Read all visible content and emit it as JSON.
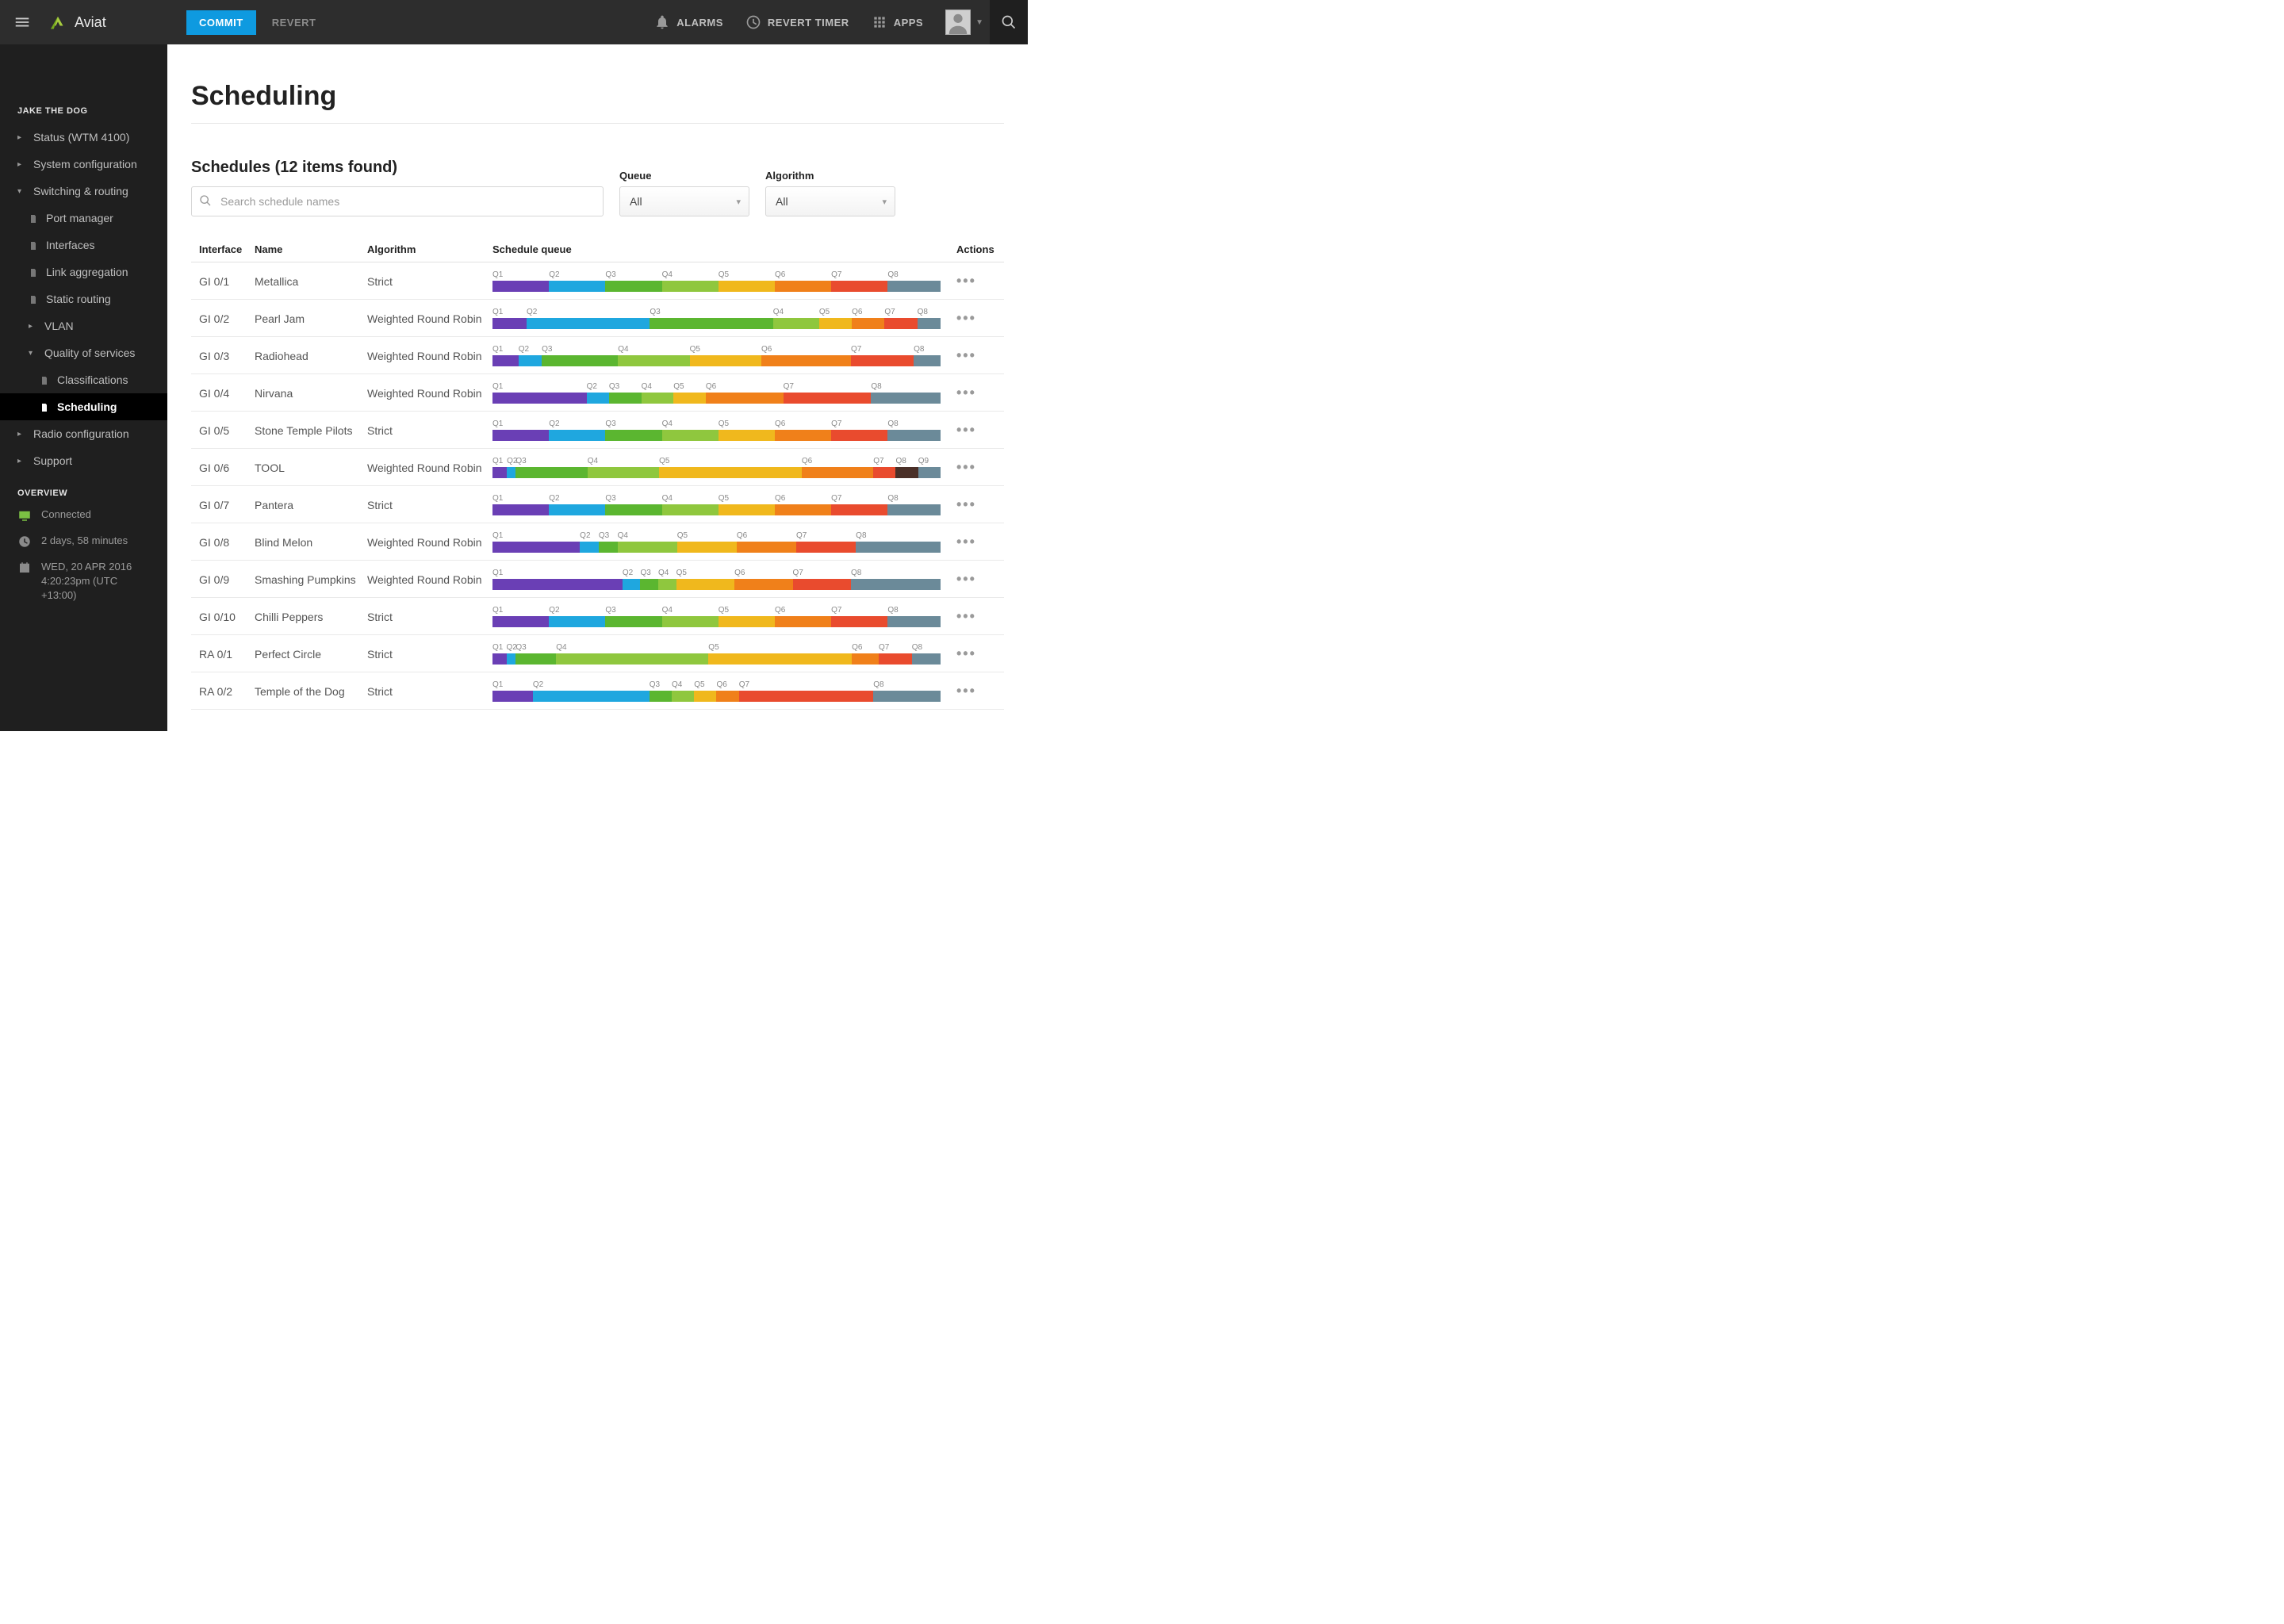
{
  "brand": "Aviat",
  "topbar": {
    "commit": "COMMIT",
    "revert": "REVERT",
    "alarms": "ALARMS",
    "revert_timer": "REVERT TIMER",
    "apps": "APPS"
  },
  "sidebar": {
    "device_title": "JAKE THE DOG",
    "items": [
      {
        "label": "Status (WTM 4100)",
        "level": 0,
        "arrow": "▸"
      },
      {
        "label": "System configuration",
        "level": 0,
        "arrow": "▸"
      },
      {
        "label": "Switching & routing",
        "level": 0,
        "arrow": "▾"
      },
      {
        "label": "Port manager",
        "level": 1,
        "icon": "doc"
      },
      {
        "label": "Interfaces",
        "level": 1,
        "icon": "doc"
      },
      {
        "label": "Link aggregation",
        "level": 1,
        "icon": "doc"
      },
      {
        "label": "Static routing",
        "level": 1,
        "icon": "doc"
      },
      {
        "label": "VLAN",
        "level": 1,
        "arrow": "▸"
      },
      {
        "label": "Quality of services",
        "level": 1,
        "arrow": "▾"
      },
      {
        "label": "Classifications",
        "level": 2,
        "icon": "doc"
      },
      {
        "label": "Scheduling",
        "level": 2,
        "icon": "doc",
        "active": true
      },
      {
        "label": "Radio configuration",
        "level": 0,
        "arrow": "▸"
      },
      {
        "label": "Support",
        "level": 0,
        "arrow": "▸"
      }
    ],
    "overview_title": "OVERVIEW",
    "connected": "Connected",
    "uptime": "2 days, 58 minutes",
    "date": "WED, 20 APR 2016",
    "time": "4:20:23pm (UTC +13:00)"
  },
  "page": {
    "title": "Scheduling",
    "subtitle": "Schedules (12 items found)",
    "search_placeholder": "Search schedule names",
    "filter_queue_label": "Queue",
    "filter_queue_value": "All",
    "filter_alg_label": "Algorithm",
    "filter_alg_value": "All"
  },
  "columns": {
    "interface": "Interface",
    "name": "Name",
    "algorithm": "Algorithm",
    "queue": "Schedule queue",
    "actions": "Actions"
  },
  "queue_colors": {
    "Q1": "#6a3fb5",
    "Q2": "#1fa7df",
    "Q3": "#5bb630",
    "Q4": "#8fc73e",
    "Q5": "#f0b81d",
    "Q6": "#f0801a",
    "Q7": "#e94b2e",
    "Q8": "#4a3028",
    "Q9": "#6b8a99"
  },
  "rows": [
    {
      "interface": "GI 0/1",
      "name": "Metallica",
      "algorithm": "Strict",
      "queue": [
        [
          "Q1",
          12.6
        ],
        [
          "Q2",
          12.6
        ],
        [
          "Q3",
          12.6
        ],
        [
          "Q4",
          12.6
        ],
        [
          "Q5",
          12.6
        ],
        [
          "Q6",
          12.6
        ],
        [
          "Q7",
          12.6
        ],
        [
          "Q8",
          11.8
        ]
      ]
    },
    {
      "interface": "GI 0/2",
      "name": "Pearl Jam",
      "algorithm": "Weighted Round Robin",
      "queue": [
        [
          "Q1",
          7.6
        ],
        [
          "Q2",
          27.5
        ],
        [
          "Q3",
          27.5
        ],
        [
          "Q4",
          10.3
        ],
        [
          "Q5",
          7.3
        ],
        [
          "Q6",
          7.3
        ],
        [
          "Q7",
          7.3
        ],
        [
          "Q8",
          5.2
        ]
      ]
    },
    {
      "interface": "GI 0/3",
      "name": "Radiohead",
      "algorithm": "Weighted Round Robin",
      "queue": [
        [
          "Q1",
          5.8
        ],
        [
          "Q2",
          5.2
        ],
        [
          "Q3",
          17.0
        ],
        [
          "Q4",
          16.0
        ],
        [
          "Q5",
          16.0
        ],
        [
          "Q6",
          20.0
        ],
        [
          "Q7",
          14.0
        ],
        [
          "Q8",
          6.0
        ]
      ]
    },
    {
      "interface": "GI 0/4",
      "name": "Nirvana",
      "algorithm": "Weighted Round Robin",
      "queue": [
        [
          "Q1",
          21.0
        ],
        [
          "Q2",
          5.0
        ],
        [
          "Q3",
          7.2
        ],
        [
          "Q4",
          7.2
        ],
        [
          "Q5",
          7.2
        ],
        [
          "Q6",
          17.3
        ],
        [
          "Q7",
          19.6
        ],
        [
          "Q8",
          15.5
        ]
      ]
    },
    {
      "interface": "GI 0/5",
      "name": "Stone Temple Pilots",
      "algorithm": "Strict",
      "queue": [
        [
          "Q1",
          12.6
        ],
        [
          "Q2",
          12.6
        ],
        [
          "Q3",
          12.6
        ],
        [
          "Q4",
          12.6
        ],
        [
          "Q5",
          12.6
        ],
        [
          "Q6",
          12.6
        ],
        [
          "Q7",
          12.6
        ],
        [
          "Q8",
          11.8
        ]
      ]
    },
    {
      "interface": "GI 0/6",
      "name": "TOOL",
      "algorithm": "Weighted Round Robin",
      "queue": [
        [
          "Q1",
          3.2
        ],
        [
          "Q2",
          2.0
        ],
        [
          "Q3",
          16.0
        ],
        [
          "Q4",
          16.0
        ],
        [
          "Q5",
          31.8
        ],
        [
          "Q6",
          16.0
        ],
        [
          "Q7",
          5.0
        ],
        [
          "Q8",
          5.0
        ],
        [
          "Q9",
          5.0
        ]
      ]
    },
    {
      "interface": "GI 0/7",
      "name": "Pantera",
      "algorithm": "Strict",
      "queue": [
        [
          "Q1",
          12.6
        ],
        [
          "Q2",
          12.6
        ],
        [
          "Q3",
          12.6
        ],
        [
          "Q4",
          12.6
        ],
        [
          "Q5",
          12.6
        ],
        [
          "Q6",
          12.6
        ],
        [
          "Q7",
          12.6
        ],
        [
          "Q8",
          11.8
        ]
      ]
    },
    {
      "interface": "GI 0/8",
      "name": "Blind Melon",
      "algorithm": "Weighted Round Robin",
      "queue": [
        [
          "Q1",
          19.5
        ],
        [
          "Q2",
          4.2
        ],
        [
          "Q3",
          4.2
        ],
        [
          "Q4",
          13.3
        ],
        [
          "Q5",
          13.3
        ],
        [
          "Q6",
          13.3
        ],
        [
          "Q7",
          13.3
        ],
        [
          "Q8",
          18.9
        ]
      ]
    },
    {
      "interface": "GI 0/9",
      "name": "Smashing Pumpkins",
      "algorithm": "Weighted Round Robin",
      "queue": [
        [
          "Q1",
          29.0
        ],
        [
          "Q2",
          4.0
        ],
        [
          "Q3",
          4.0
        ],
        [
          "Q4",
          4.0
        ],
        [
          "Q5",
          13.0
        ],
        [
          "Q6",
          13.0
        ],
        [
          "Q7",
          13.0
        ],
        [
          "Q8",
          20.0
        ]
      ]
    },
    {
      "interface": "GI 0/10",
      "name": "Chilli Peppers",
      "algorithm": "Strict",
      "queue": [
        [
          "Q1",
          12.6
        ],
        [
          "Q2",
          12.6
        ],
        [
          "Q3",
          12.6
        ],
        [
          "Q4",
          12.6
        ],
        [
          "Q5",
          12.6
        ],
        [
          "Q6",
          12.6
        ],
        [
          "Q7",
          12.6
        ],
        [
          "Q8",
          11.8
        ]
      ]
    },
    {
      "interface": "RA 0/1",
      "name": "Perfect Circle",
      "algorithm": "Strict",
      "queue": [
        [
          "Q1",
          3.1
        ],
        [
          "Q2",
          2.1
        ],
        [
          "Q3",
          9.0
        ],
        [
          "Q4",
          34.0
        ],
        [
          "Q5",
          32.0
        ],
        [
          "Q6",
          6.0
        ],
        [
          "Q7",
          7.4
        ],
        [
          "Q8",
          6.4
        ]
      ]
    },
    {
      "interface": "RA 0/2",
      "name": "Temple of the Dog",
      "algorithm": "Strict",
      "queue": [
        [
          "Q1",
          9.0
        ],
        [
          "Q2",
          26.0
        ],
        [
          "Q3",
          5.0
        ],
        [
          "Q4",
          5.0
        ],
        [
          "Q5",
          5.0
        ],
        [
          "Q6",
          5.0
        ],
        [
          "Q7",
          30.0
        ],
        [
          "Q8",
          15.0
        ]
      ]
    }
  ]
}
